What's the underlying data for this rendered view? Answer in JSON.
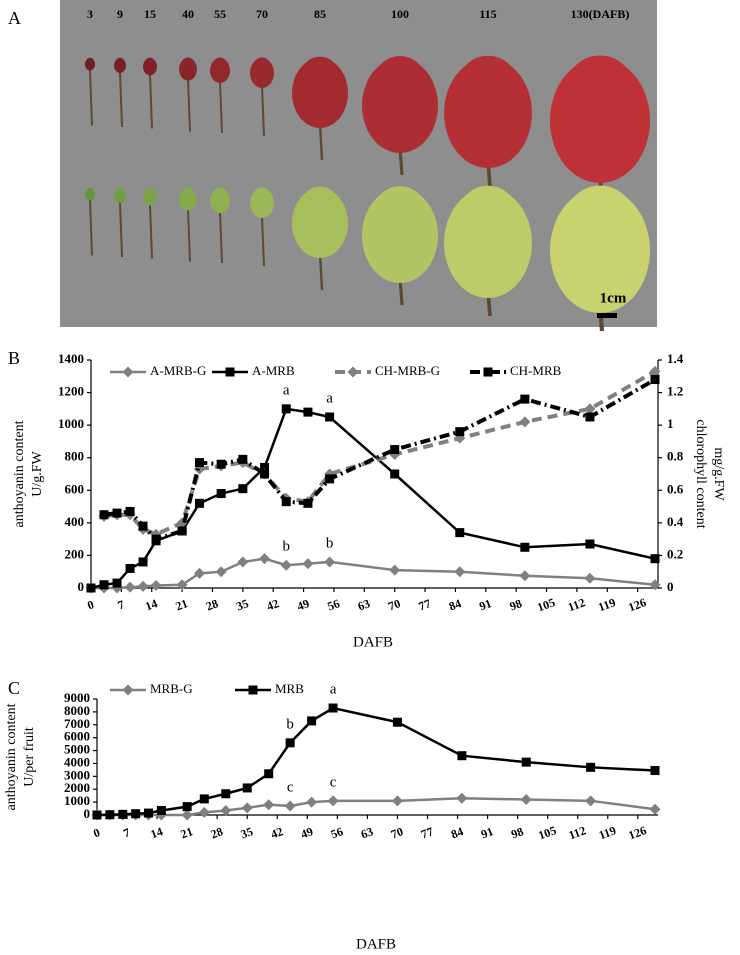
{
  "photo": {
    "panel": "A",
    "labels": [
      "3",
      "9",
      "15",
      "40",
      "55",
      "70",
      "85",
      "100",
      "115",
      "130(DAFB)"
    ],
    "scale": "1cm"
  },
  "chart_data": [
    {
      "panel": "B",
      "type": "line",
      "x": [
        0,
        3,
        6,
        9,
        12,
        15,
        21,
        25,
        30,
        35,
        40,
        45,
        50,
        55,
        70,
        85,
        100,
        115,
        130
      ],
      "xlim": [
        0,
        130
      ],
      "xticks": [
        0,
        7,
        14,
        21,
        28,
        35,
        42,
        49,
        56,
        63,
        70,
        77,
        84,
        91,
        98,
        105,
        112,
        119,
        126
      ],
      "xlabel": "DAFB",
      "ylabel": [
        "anthoyanin content",
        "U/g.FW"
      ],
      "ylim": [
        0,
        1400
      ],
      "yticks": [
        0,
        200,
        400,
        600,
        800,
        1000,
        1200,
        1400
      ],
      "y2label": [
        "chlorophyll content",
        "mg/g.FW"
      ],
      "y2lim": [
        0,
        1.4
      ],
      "y2ticks": [
        0,
        0.2,
        0.4,
        0.6,
        0.8,
        1,
        1.2,
        1.4
      ],
      "series": [
        {
          "name": "A-MRB-G",
          "color": "#808080",
          "marker": "diamond",
          "dash": "solid",
          "linewidth": 2.5,
          "values": [
            0,
            0,
            0,
            5,
            10,
            15,
            20,
            90,
            100,
            160,
            180,
            140,
            150,
            160,
            110,
            100,
            75,
            60,
            20
          ]
        },
        {
          "name": "A-MRB",
          "color": "#000000",
          "marker": "square",
          "dash": "solid",
          "linewidth": 2.5,
          "values": [
            0,
            20,
            30,
            120,
            160,
            290,
            350,
            520,
            580,
            610,
            740,
            1100,
            1080,
            1050,
            700,
            340,
            250,
            270,
            180
          ]
        },
        {
          "name": "CH-MRB-G",
          "color": "#808080",
          "marker": "diamond",
          "dash": "dash",
          "linewidth": 4,
          "axis": "y2",
          "values": [
            null,
            0.44,
            0.45,
            0.45,
            0.36,
            0.33,
            0.4,
            0.73,
            0.75,
            0.77,
            0.7,
            0.55,
            0.53,
            0.7,
            0.82,
            0.92,
            1.02,
            1.1,
            1.33
          ]
        },
        {
          "name": "CH-MRB",
          "color": "#000000",
          "marker": "square",
          "dash": "dashdot",
          "linewidth": 4,
          "axis": "y2",
          "values": [
            null,
            0.45,
            0.46,
            0.47,
            0.38,
            0.3,
            0.35,
            0.77,
            0.76,
            0.79,
            0.7,
            0.53,
            0.52,
            0.67,
            0.85,
            0.96,
            1.16,
            1.05,
            1.28
          ]
        }
      ],
      "annotations": [
        {
          "text": "a",
          "x": 45,
          "y": 1100
        },
        {
          "text": "a",
          "x": 55,
          "y": 1050
        },
        {
          "text": "b",
          "x": 45,
          "y": 140
        },
        {
          "text": "b",
          "x": 55,
          "y": 160
        }
      ]
    },
    {
      "panel": "C",
      "type": "line",
      "x": [
        0,
        3,
        6,
        9,
        12,
        15,
        21,
        25,
        30,
        35,
        40,
        45,
        50,
        55,
        70,
        85,
        100,
        115,
        130
      ],
      "xlim": [
        0,
        130
      ],
      "xticks": [
        0,
        7,
        14,
        21,
        28,
        35,
        42,
        49,
        56,
        63,
        70,
        77,
        84,
        91,
        98,
        105,
        112,
        119,
        126
      ],
      "xlabel": "DAFB",
      "ylabel": [
        "anthoyanin content",
        "U/per fruit"
      ],
      "ylim": [
        0,
        9000
      ],
      "yticks": [
        0,
        1000,
        2000,
        3000,
        4000,
        5000,
        6000,
        7000,
        8000,
        9000
      ],
      "series": [
        {
          "name": "MRB-G",
          "color": "#808080",
          "marker": "diamond",
          "dash": "solid",
          "linewidth": 2.5,
          "values": [
            0,
            0,
            0,
            0,
            0,
            0,
            0,
            200,
            350,
            550,
            800,
            700,
            1000,
            1100,
            1100,
            1300,
            1200,
            1100,
            450
          ]
        },
        {
          "name": "MRB",
          "color": "#000000",
          "marker": "square",
          "dash": "solid",
          "linewidth": 2.5,
          "values": [
            0,
            20,
            50,
            100,
            150,
            350,
            650,
            1250,
            1650,
            2100,
            3200,
            5600,
            7300,
            8300,
            7200,
            4600,
            4100,
            3700,
            3450
          ]
        }
      ],
      "annotations": [
        {
          "text": "b",
          "x": 45,
          "y": 5600
        },
        {
          "text": "a",
          "x": 55,
          "y": 8300
        },
        {
          "text": "c",
          "x": 45,
          "y": 700
        },
        {
          "text": "c",
          "x": 55,
          "y": 1100
        }
      ]
    }
  ]
}
